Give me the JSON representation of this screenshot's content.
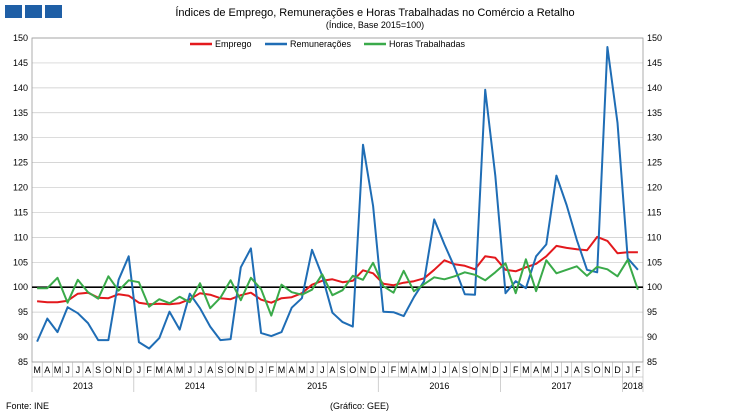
{
  "header": {
    "title": "Índices de Emprego, Remunerações e Horas Trabalhadas no Comércio a Retalho",
    "subtitle": "(Índice, Base 2015=100)"
  },
  "footer": {
    "source": "Fonte: INE",
    "credit": "(Gráfico: GEE)"
  },
  "chart_data": {
    "type": "line",
    "title": "Índices de Emprego, Remunerações e Horas Trabalhadas no Comércio a Retalho",
    "subtitle": "(Índice, Base 2015=100)",
    "xlabel": "",
    "ylabel": "",
    "ylim": [
      85,
      150
    ],
    "yticks": [
      85,
      90,
      95,
      100,
      105,
      110,
      115,
      120,
      125,
      130,
      135,
      140,
      145,
      150
    ],
    "grid": true,
    "legend": "top",
    "reference_line": 100,
    "month_labels": [
      "M",
      "A",
      "M",
      "J",
      "J",
      "A",
      "S",
      "O",
      "N",
      "D",
      "J",
      "F",
      "M",
      "A",
      "M",
      "J",
      "J",
      "A",
      "S",
      "O",
      "N",
      "D",
      "J",
      "F",
      "M",
      "A",
      "M",
      "J",
      "J",
      "A",
      "S",
      "O",
      "N",
      "D",
      "J",
      "F",
      "M",
      "A",
      "M",
      "J",
      "J",
      "A",
      "S",
      "O",
      "N",
      "D",
      "J",
      "F",
      "M",
      "A",
      "M",
      "J",
      "J",
      "A",
      "S",
      "O",
      "N",
      "D",
      "J",
      "F"
    ],
    "year_groups": [
      {
        "label": "2013",
        "start": 0,
        "count": 10
      },
      {
        "label": "2014",
        "start": 10,
        "count": 12
      },
      {
        "label": "2015",
        "start": 22,
        "count": 12
      },
      {
        "label": "2016",
        "start": 34,
        "count": 12
      },
      {
        "label": "2017",
        "start": 46,
        "count": 12
      },
      {
        "label": "2018",
        "start": 58,
        "count": 2
      }
    ],
    "x": [
      "2013-03",
      "2013-04",
      "2013-05",
      "2013-06",
      "2013-07",
      "2013-08",
      "2013-09",
      "2013-10",
      "2013-11",
      "2013-12",
      "2014-01",
      "2014-02",
      "2014-03",
      "2014-04",
      "2014-05",
      "2014-06",
      "2014-07",
      "2014-08",
      "2014-09",
      "2014-10",
      "2014-11",
      "2014-12",
      "2015-01",
      "2015-02",
      "2015-03",
      "2015-04",
      "2015-05",
      "2015-06",
      "2015-07",
      "2015-08",
      "2015-09",
      "2015-10",
      "2015-11",
      "2015-12",
      "2016-01",
      "2016-02",
      "2016-03",
      "2016-04",
      "2016-05",
      "2016-06",
      "2016-07",
      "2016-08",
      "2016-09",
      "2016-10",
      "2016-11",
      "2016-12",
      "2017-01",
      "2017-02",
      "2017-03",
      "2017-04",
      "2017-05",
      "2017-06",
      "2017-07",
      "2017-08",
      "2017-09",
      "2017-10",
      "2017-11",
      "2017-12",
      "2018-01",
      "2018-02"
    ],
    "series": [
      {
        "name": "Emprego",
        "color": "#e3191d",
        "values": [
          97.2,
          97.0,
          97.0,
          97.3,
          98.7,
          98.9,
          97.9,
          97.8,
          98.6,
          98.3,
          96.9,
          96.6,
          96.7,
          96.6,
          96.8,
          97.6,
          98.8,
          98.5,
          97.8,
          97.6,
          98.4,
          98.9,
          97.5,
          96.9,
          97.8,
          98.0,
          98.8,
          100.5,
          101.3,
          101.6,
          101.0,
          101.3,
          103.4,
          102.8,
          100.7,
          100.4,
          100.9,
          101.2,
          101.8,
          103.5,
          105.4,
          104.6,
          104.3,
          103.6,
          106.2,
          105.9,
          103.5,
          103.2,
          104.0,
          104.7,
          106.2,
          108.3,
          107.9,
          107.6,
          107.4,
          110.1,
          109.3,
          106.8,
          107.0,
          107.0
        ]
      },
      {
        "name": "Remunerações",
        "color": "#1f6db5",
        "values": [
          89.1,
          93.7,
          91.0,
          96.0,
          94.8,
          92.8,
          89.4,
          89.4,
          101.5,
          106.2,
          89.0,
          87.7,
          89.8,
          95.1,
          91.5,
          98.7,
          95.8,
          92.1,
          89.4,
          89.6,
          104.0,
          107.8,
          90.8,
          90.2,
          91.0,
          95.9,
          97.8,
          107.5,
          102.3,
          94.9,
          93.0,
          92.1,
          128.6,
          116.3,
          95.1,
          95.0,
          94.2,
          98.0,
          101.2,
          113.6,
          108.6,
          104.0,
          98.6,
          98.5,
          139.6,
          122.4,
          98.8,
          101.2,
          99.8,
          106.2,
          108.6,
          122.4,
          116.5,
          109.5,
          103.5,
          103.0,
          148.2,
          133.0,
          105.8,
          103.5
        ]
      },
      {
        "name": "Horas Trabalhadas",
        "color": "#3aaa4a",
        "values": [
          99.8,
          99.8,
          101.9,
          96.9,
          101.5,
          99.0,
          97.7,
          102.2,
          99.3,
          101.4,
          101.0,
          96.1,
          97.6,
          96.8,
          98.1,
          97.0,
          100.8,
          95.8,
          97.9,
          101.4,
          97.4,
          101.9,
          99.6,
          94.3,
          100.5,
          99.0,
          98.5,
          99.5,
          102.6,
          98.4,
          99.4,
          102.3,
          101.5,
          104.9,
          100.2,
          98.9,
          103.3,
          99.2,
          100.6,
          102.0,
          101.6,
          102.2,
          103.0,
          102.5,
          101.4,
          103.0,
          104.8,
          98.8,
          105.6,
          99.2,
          105.4,
          102.8,
          103.5,
          104.2,
          102.3,
          104.1,
          103.6,
          102.2,
          105.5,
          99.5
        ]
      }
    ]
  }
}
